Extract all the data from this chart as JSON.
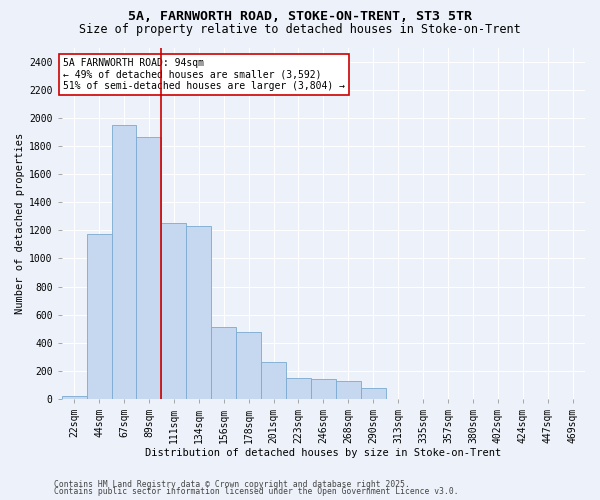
{
  "title_line1": "5A, FARNWORTH ROAD, STOKE-ON-TRENT, ST3 5TR",
  "title_line2": "Size of property relative to detached houses in Stoke-on-Trent",
  "xlabel": "Distribution of detached houses by size in Stoke-on-Trent",
  "ylabel": "Number of detached properties",
  "categories": [
    "22sqm",
    "44sqm",
    "67sqm",
    "89sqm",
    "111sqm",
    "134sqm",
    "156sqm",
    "178sqm",
    "201sqm",
    "223sqm",
    "246sqm",
    "268sqm",
    "290sqm",
    "313sqm",
    "335sqm",
    "357sqm",
    "380sqm",
    "402sqm",
    "424sqm",
    "447sqm",
    "469sqm"
  ],
  "values": [
    20,
    1175,
    1950,
    1860,
    1250,
    1230,
    510,
    480,
    265,
    150,
    140,
    130,
    80,
    0,
    0,
    0,
    0,
    0,
    0,
    0,
    0
  ],
  "bar_color": "#c5d8f0",
  "bar_edge_color": "#7aaad0",
  "vline_color": "#cc0000",
  "vline_index": 3,
  "annotation_text": "5A FARNWORTH ROAD: 94sqm\n← 49% of detached houses are smaller (3,592)\n51% of semi-detached houses are larger (3,804) →",
  "annotation_box_facecolor": "#ffffff",
  "annotation_box_edgecolor": "#cc0000",
  "ylim": [
    0,
    2500
  ],
  "yticks": [
    0,
    200,
    400,
    600,
    800,
    1000,
    1200,
    1400,
    1600,
    1800,
    2000,
    2200,
    2400
  ],
  "background_color": "#edf2fa",
  "grid_color": "#ffffff",
  "footer_line1": "Contains HM Land Registry data © Crown copyright and database right 2025.",
  "footer_line2": "Contains public sector information licensed under the Open Government Licence v3.0.",
  "title_fontsize": 9.5,
  "subtitle_fontsize": 8.5,
  "axis_label_fontsize": 7.5,
  "tick_fontsize": 7,
  "annotation_fontsize": 7,
  "footer_fontsize": 5.8
}
